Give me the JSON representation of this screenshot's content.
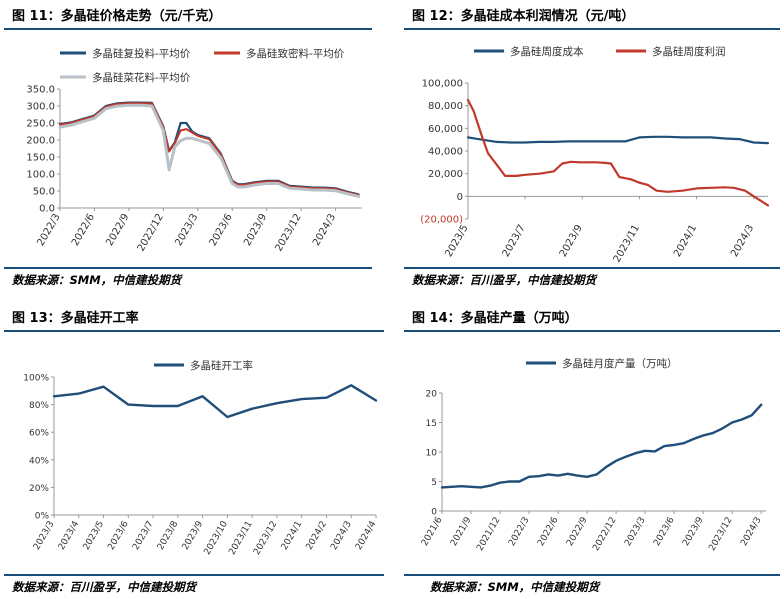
{
  "colors": {
    "navy": "#1f4e79",
    "red": "#c0392b",
    "gray": "#b8c0c8",
    "rule": "#1a4e7a"
  },
  "chart_data": [
    {
      "id": "fig11",
      "figure_title": "图 11：多晶硅价格走势（元/千克）",
      "source": "数据来源：SMM，中信建投期货",
      "type": "line",
      "title": "",
      "ylim": [
        0,
        350
      ],
      "yticks": [
        "0.0",
        "50.0",
        "100.0",
        "150.0",
        "200.0",
        "250.0",
        "300.0",
        "350.0"
      ],
      "ytick_values": [
        0,
        50,
        100,
        150,
        200,
        250,
        300,
        350
      ],
      "xlim": [
        0,
        26.3
      ],
      "xticks": [
        "2022/3",
        "2022/6",
        "2022/9",
        "2022/12",
        "2023/3",
        "2023/6",
        "2023/9",
        "2023/12",
        "2024/3"
      ],
      "xtick_pos": [
        0,
        3,
        6,
        9,
        12,
        15,
        18,
        21,
        24
      ],
      "legend": "top",
      "grid": false,
      "series": [
        {
          "name": "多晶硅复投料-平均价",
          "color": "#1f4e79",
          "width": 2.2,
          "x": [
            0,
            1,
            2,
            3,
            4,
            5,
            6,
            7,
            8,
            9,
            9.5,
            10,
            10.5,
            11,
            11.5,
            12,
            13,
            14,
            15,
            15.5,
            16,
            17,
            18,
            19,
            20,
            21,
            22,
            23,
            24,
            25,
            26
          ],
          "y": [
            247,
            252,
            262,
            272,
            300,
            308,
            310,
            310,
            309,
            240,
            168,
            193,
            250,
            250,
            225,
            215,
            205,
            160,
            80,
            70,
            70,
            76,
            80,
            80,
            65,
            63,
            60,
            60,
            58,
            48,
            40
          ]
        },
        {
          "name": "多晶硅致密料-平均价",
          "color": "#c0392b",
          "width": 2.0,
          "x": [
            0,
            1,
            2,
            3,
            4,
            5,
            6,
            7,
            8,
            9,
            9.5,
            10,
            10.5,
            11,
            11.5,
            12,
            13,
            14,
            15,
            15.5,
            16,
            17,
            18,
            19,
            20,
            21,
            22,
            23,
            24,
            25,
            26
          ],
          "y": [
            245,
            250,
            260,
            270,
            298,
            306,
            308,
            308,
            307,
            238,
            166,
            190,
            228,
            232,
            222,
            212,
            202,
            158,
            78,
            68,
            68,
            74,
            78,
            78,
            63,
            61,
            58,
            58,
            56,
            46,
            38
          ]
        },
        {
          "name": "多晶硅菜花料-平均价",
          "color": "#b8c0c8",
          "width": 3.0,
          "x": [
            0,
            1,
            2,
            3,
            4,
            5,
            6,
            7,
            8,
            9,
            9.5,
            10,
            10.5,
            11,
            11.5,
            12,
            13,
            14,
            15,
            15.5,
            16,
            17,
            18,
            19,
            20,
            21,
            22,
            23,
            24,
            25,
            26
          ],
          "y": [
            238,
            244,
            254,
            264,
            292,
            300,
            302,
            302,
            300,
            228,
            112,
            180,
            198,
            205,
            205,
            200,
            190,
            148,
            72,
            62,
            62,
            68,
            72,
            72,
            58,
            56,
            53,
            53,
            51,
            42,
            34
          ]
        }
      ]
    },
    {
      "id": "fig12",
      "figure_title": "图 12：多晶硅成本利润情况（元/吨）",
      "source": "数据来源：百川盈孚，中信建投期货",
      "type": "line",
      "title": "",
      "ylim": [
        -20000,
        100000
      ],
      "yticks": [
        "(20,000)",
        "0",
        "20,000",
        "40,000",
        "60,000",
        "80,000",
        "100,000"
      ],
      "ytick_values": [
        -20000,
        0,
        20000,
        40000,
        60000,
        80000,
        100000
      ],
      "xlim": [
        0,
        10.5
      ],
      "xticks": [
        "2023/5",
        "2023/7",
        "2023/9",
        "2023/11",
        "2024/1",
        "2024/3"
      ],
      "xtick_pos": [
        0,
        2,
        4,
        6,
        8,
        10
      ],
      "legend": "top",
      "grid": false,
      "series": [
        {
          "name": "多晶硅周度成本",
          "color": "#1f4e79",
          "width": 2.2,
          "x": [
            0,
            0.5,
            1,
            1.5,
            2,
            2.5,
            3,
            3.5,
            4,
            4.5,
            5,
            5.5,
            6,
            6.5,
            7,
            7.5,
            8,
            8.5,
            9,
            9.5,
            10,
            10.5
          ],
          "y": [
            52000,
            50000,
            48000,
            47500,
            47500,
            48000,
            48000,
            48500,
            48500,
            48500,
            48500,
            48500,
            52000,
            52500,
            52500,
            52000,
            52000,
            52000,
            51000,
            50500,
            47500,
            47000
          ]
        },
        {
          "name": "多晶硅周度利润",
          "color": "#c0392b",
          "width": 2.2,
          "x": [
            0,
            0.2,
            0.5,
            0.7,
            1,
            1.3,
            1.7,
            2,
            2.5,
            3,
            3.3,
            3.6,
            3.9,
            4.2,
            4.5,
            4.8,
            5,
            5.3,
            5.7,
            6,
            6.3,
            6.6,
            7,
            7.5,
            8,
            8.5,
            9,
            9.3,
            9.7,
            10,
            10.5
          ],
          "y": [
            85000,
            75000,
            52000,
            38000,
            28000,
            18000,
            18000,
            19000,
            20000,
            22000,
            29000,
            30500,
            30000,
            30000,
            30000,
            29500,
            29000,
            17000,
            15000,
            12000,
            10000,
            5000,
            4000,
            5000,
            7000,
            7500,
            8000,
            7500,
            5000,
            0,
            -8000
          ]
        }
      ]
    },
    {
      "id": "fig13",
      "figure_title": "图 13：多晶硅开工率",
      "source": "数据来源：百川盈孚，中信建投期货",
      "type": "line",
      "title": "",
      "ylim": [
        0,
        100
      ],
      "yticks": [
        "0%",
        "20%",
        "40%",
        "60%",
        "80%",
        "100%"
      ],
      "ytick_values": [
        0,
        20,
        40,
        60,
        80,
        100
      ],
      "xlim": [
        0,
        13
      ],
      "xticks": [
        "2023/3",
        "2023/4",
        "2023/5",
        "2023/6",
        "2023/7",
        "2023/8",
        "2023/9",
        "2023/10",
        "2023/11",
        "2023/12",
        "2024/1",
        "2024/2",
        "2024/3",
        "2024/4"
      ],
      "xtick_pos": [
        0,
        1,
        2,
        3,
        4,
        5,
        6,
        7,
        8,
        9,
        10,
        11,
        12,
        13
      ],
      "legend": "top",
      "grid": false,
      "series": [
        {
          "name": "多晶硅开工率",
          "color": "#1f4e79",
          "width": 2.4,
          "x": [
            0,
            1,
            2,
            3,
            4,
            5,
            6,
            7,
            8,
            9,
            10,
            11,
            12,
            13
          ],
          "y": [
            86,
            88,
            93,
            80,
            79,
            79,
            86,
            71,
            77,
            81,
            84,
            85,
            94,
            83
          ]
        }
      ]
    },
    {
      "id": "fig14",
      "figure_title": "图 14：多晶硅产量（万吨）",
      "source": "数据来源：SMM，中信建投期货",
      "type": "line",
      "title": "",
      "ylim": [
        0,
        20
      ],
      "yticks": [
        "0",
        "5",
        "10",
        "15",
        "20"
      ],
      "ytick_values": [
        0,
        5,
        10,
        15,
        20
      ],
      "xlim": [
        0,
        33.5
      ],
      "xticks": [
        "2021/6",
        "2021/9",
        "2021/12",
        "2022/3",
        "2022/6",
        "2022/9",
        "2022/12",
        "2023/3",
        "2023/6",
        "2023/9",
        "2023/12",
        "2024/3"
      ],
      "xtick_pos": [
        0,
        3,
        6,
        9,
        12,
        15,
        18,
        21,
        24,
        27,
        30,
        33
      ],
      "legend": "top",
      "grid": false,
      "series": [
        {
          "name": "多晶硅月度产量（万吨）",
          "color": "#1f4e79",
          "width": 2.4,
          "x": [
            0,
            1,
            2,
            3,
            4,
            5,
            6,
            7,
            8,
            9,
            10,
            11,
            12,
            13,
            14,
            15,
            16,
            17,
            18,
            19,
            20,
            21,
            22,
            23,
            24,
            25,
            26,
            27,
            28,
            29,
            30,
            31,
            32,
            33
          ],
          "y": [
            4.0,
            4.1,
            4.2,
            4.1,
            4.0,
            4.3,
            4.8,
            5.0,
            5.0,
            5.8,
            5.9,
            6.2,
            6.0,
            6.3,
            6.0,
            5.8,
            6.2,
            7.5,
            8.5,
            9.2,
            9.8,
            10.2,
            10.1,
            11.0,
            11.2,
            11.5,
            12.2,
            12.8,
            13.2,
            14.0,
            15.0,
            15.5,
            16.2,
            18.0
          ]
        }
      ]
    }
  ]
}
